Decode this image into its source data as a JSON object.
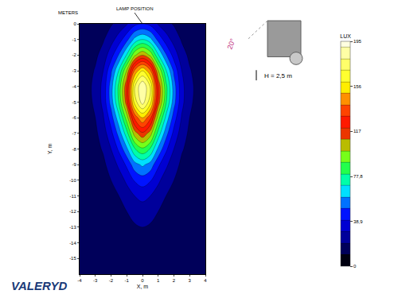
{
  "chart_data": {
    "type": "contour",
    "x_label": "X, m",
    "y_label": "Y, m",
    "x": [
      -4,
      -3.5,
      -3,
      -2.5,
      -2,
      -1.5,
      -1,
      -0.5,
      0,
      0.5,
      1,
      1.5,
      2,
      2.5,
      3,
      3.5,
      4
    ],
    "y": [
      0,
      -1,
      -2,
      -3,
      -4,
      -5,
      -6,
      -7,
      -8,
      -9,
      -10,
      -11,
      -12,
      -13,
      -14,
      -15,
      -16
    ],
    "z": [
      [
        12,
        13,
        14,
        15,
        19,
        23,
        29,
        37,
        40,
        37,
        29,
        23,
        19,
        15,
        14,
        13,
        12
      ],
      [
        13,
        14,
        15,
        19,
        26,
        35,
        47,
        63,
        70,
        63,
        47,
        35,
        26,
        19,
        15,
        14,
        13
      ],
      [
        13,
        15,
        18,
        24,
        36,
        51,
        71,
        98,
        110,
        98,
        71,
        51,
        36,
        24,
        18,
        15,
        13
      ],
      [
        13,
        16,
        21,
        30,
        48,
        71,
        101,
        142,
        160,
        142,
        101,
        71,
        48,
        30,
        21,
        16,
        13
      ],
      [
        14,
        17,
        23,
        33,
        55,
        83,
        119,
        169,
        190,
        169,
        119,
        83,
        55,
        33,
        23,
        17,
        14
      ],
      [
        14,
        17,
        22,
        33,
        54,
        81,
        116,
        164,
        185,
        164,
        116,
        81,
        54,
        33,
        22,
        17,
        14
      ],
      [
        13,
        16,
        20,
        29,
        45,
        67,
        95,
        133,
        150,
        133,
        95,
        67,
        45,
        29,
        20,
        16,
        13
      ],
      [
        13,
        15,
        18,
        25,
        37,
        54,
        76,
        105,
        118,
        105,
        76,
        54,
        37,
        25,
        18,
        15,
        13
      ],
      [
        13,
        14,
        17,
        21,
        30,
        42,
        58,
        79,
        88,
        79,
        58,
        42,
        30,
        21,
        17,
        14,
        13
      ],
      [
        13,
        14,
        15,
        18,
        24,
        32,
        42,
        56,
        62,
        56,
        42,
        32,
        24,
        18,
        15,
        14,
        13
      ],
      [
        12,
        13,
        14,
        16,
        20,
        25,
        32,
        41,
        45,
        41,
        32,
        25,
        20,
        16,
        14,
        13,
        12
      ],
      [
        12,
        13,
        13,
        15,
        17,
        20,
        25,
        30,
        33,
        30,
        25,
        20,
        17,
        15,
        13,
        13,
        12
      ],
      [
        12,
        12,
        13,
        14,
        15,
        17,
        20,
        23,
        25,
        23,
        20,
        17,
        15,
        14,
        13,
        12,
        12
      ],
      [
        12,
        12,
        12,
        13,
        14,
        15,
        17,
        19,
        20,
        19,
        17,
        15,
        14,
        13,
        12,
        12,
        12
      ],
      [
        12,
        12,
        12,
        12,
        13,
        14,
        14,
        16,
        16,
        16,
        14,
        14,
        13,
        12,
        12,
        12,
        12
      ],
      [
        12,
        12,
        12,
        12,
        12,
        12,
        13,
        13,
        13,
        13,
        13,
        12,
        12,
        12,
        12,
        12,
        12
      ],
      [
        11,
        11,
        11,
        11,
        11,
        11,
        11,
        11,
        11,
        11,
        11,
        11,
        11,
        11,
        11,
        11,
        11
      ]
    ],
    "xlim": [
      -4,
      4
    ],
    "ylim": [
      -16,
      0
    ],
    "xticks": [
      -4,
      -3,
      -2,
      -1,
      0,
      1,
      2,
      3,
      4
    ],
    "yticks": [
      0,
      -1,
      -2,
      -3,
      -4,
      -5,
      -6,
      -7,
      -8,
      -9,
      -10,
      -11,
      -12,
      -13,
      -14,
      -15
    ],
    "colorbar": {
      "title": "LUX",
      "range": [
        0,
        195
      ],
      "ticks": [
        0,
        {
          "value": 38.9,
          "label": "38,9"
        },
        {
          "value": 77.8,
          "label": "77,8"
        },
        117,
        156,
        195
      ]
    },
    "annotations": [
      {
        "text": "METERS"
      },
      {
        "text": "LAMP POSITION",
        "x": 0,
        "y": 0
      },
      {
        "text": "20°"
      },
      {
        "text": "H = 2,5 m"
      },
      {
        "text": "VALERYD"
      }
    ]
  }
}
